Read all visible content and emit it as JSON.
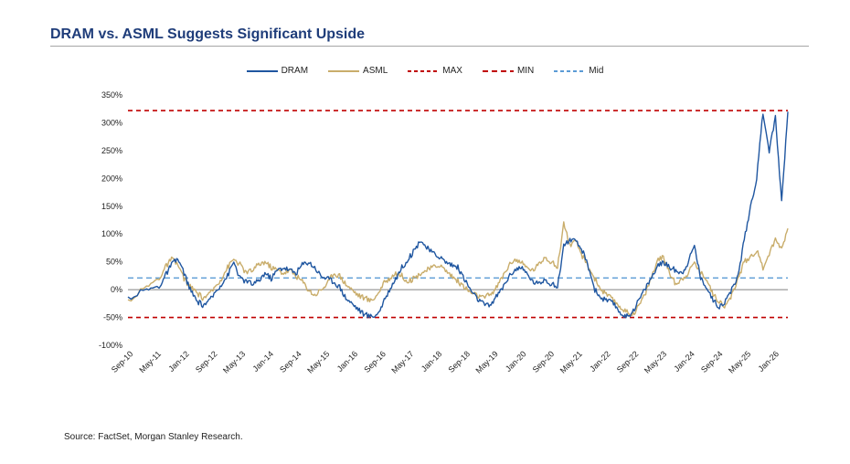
{
  "header": {
    "title": "DRAM vs. ASML Suggests Significant Upside"
  },
  "footer": {
    "source": "Source: FactSet, Morgan Stanley Research."
  },
  "chart_data": {
    "type": "line",
    "title": "DRAM vs. ASML Suggests Significant Upside",
    "xlabel": "",
    "ylabel": "",
    "ylim": [
      -100,
      350
    ],
    "y_ticks": [
      "350%",
      "300%",
      "250%",
      "200%",
      "150%",
      "100%",
      "50%",
      "0%",
      "-50%",
      "-100%"
    ],
    "y_tick_values": [
      350,
      300,
      250,
      200,
      150,
      100,
      50,
      0,
      -50,
      -100
    ],
    "x_ticks": [
      "Sep-10",
      "May-11",
      "Jan-12",
      "Sep-12",
      "May-13",
      "Jan-14",
      "Sep-14",
      "May-15",
      "Jan-16",
      "Sep-16",
      "May-17",
      "Jan-18",
      "Sep-18",
      "May-19",
      "Jan-20",
      "Sep-20",
      "May-21",
      "Jan-22",
      "Sep-22",
      "May-23",
      "Jan-24",
      "Sep-24",
      "May-25",
      "Jan-26"
    ],
    "legend_position": "top-center",
    "series": [
      {
        "name": "DRAM",
        "color": "#1f56a0",
        "style": "solid",
        "points": [
          [
            0,
            -15
          ],
          [
            3,
            0
          ],
          [
            5,
            5
          ],
          [
            6,
            25
          ],
          [
            7,
            45
          ],
          [
            8,
            55
          ],
          [
            9,
            30
          ],
          [
            10,
            0
          ],
          [
            11,
            -20
          ],
          [
            12,
            -28
          ],
          [
            13,
            -22
          ],
          [
            14,
            -5
          ],
          [
            15,
            10
          ],
          [
            16,
            25
          ],
          [
            17,
            50
          ],
          [
            18,
            20
          ],
          [
            19,
            15
          ],
          [
            20,
            10
          ],
          [
            21,
            15
          ],
          [
            22,
            30
          ],
          [
            23,
            20
          ],
          [
            24,
            35
          ],
          [
            25,
            40
          ],
          [
            26,
            35
          ],
          [
            27,
            30
          ],
          [
            28,
            45
          ],
          [
            29,
            50
          ],
          [
            30,
            40
          ],
          [
            31,
            25
          ],
          [
            32,
            20
          ],
          [
            33,
            15
          ],
          [
            34,
            5
          ],
          [
            35,
            -15
          ],
          [
            36,
            -25
          ],
          [
            37,
            -35
          ],
          [
            38,
            -45
          ],
          [
            39,
            -48
          ],
          [
            40,
            -45
          ],
          [
            41,
            -25
          ],
          [
            42,
            0
          ],
          [
            43,
            20
          ],
          [
            44,
            40
          ],
          [
            45,
            55
          ],
          [
            46,
            70
          ],
          [
            47,
            90
          ],
          [
            48,
            75
          ],
          [
            49,
            65
          ],
          [
            50,
            60
          ],
          [
            51,
            50
          ],
          [
            52,
            45
          ],
          [
            53,
            40
          ],
          [
            54,
            20
          ],
          [
            55,
            0
          ],
          [
            56,
            -15
          ],
          [
            57,
            -25
          ],
          [
            58,
            -30
          ],
          [
            59,
            -15
          ],
          [
            60,
            0
          ],
          [
            61,
            20
          ],
          [
            62,
            35
          ],
          [
            63,
            40
          ],
          [
            64,
            30
          ],
          [
            65,
            15
          ],
          [
            66,
            10
          ],
          [
            67,
            20
          ],
          [
            68,
            10
          ],
          [
            69,
            5
          ],
          [
            70,
            80
          ],
          [
            71,
            90
          ],
          [
            72,
            85
          ],
          [
            73,
            70
          ],
          [
            74,
            40
          ],
          [
            75,
            0
          ],
          [
            76,
            -15
          ],
          [
            77,
            -20
          ],
          [
            78,
            -25
          ],
          [
            79,
            -40
          ],
          [
            80,
            -50
          ],
          [
            81,
            -40
          ],
          [
            82,
            -20
          ],
          [
            83,
            0
          ],
          [
            84,
            20
          ],
          [
            85,
            40
          ],
          [
            86,
            50
          ],
          [
            87,
            40
          ],
          [
            88,
            35
          ],
          [
            89,
            30
          ],
          [
            90,
            50
          ],
          [
            91,
            80
          ],
          [
            92,
            20
          ],
          [
            93,
            5
          ],
          [
            94,
            -20
          ],
          [
            95,
            -30
          ],
          [
            96,
            -20
          ],
          [
            97,
            0
          ],
          [
            98,
            25
          ],
          [
            99,
            90
          ],
          [
            100,
            150
          ],
          [
            101,
            200
          ],
          [
            102,
            320
          ],
          [
            103,
            250
          ],
          [
            104,
            310
          ],
          [
            105,
            160
          ],
          [
            106,
            320
          ]
        ]
      },
      {
        "name": "ASML",
        "color": "#c9ad6b",
        "style": "solid",
        "points": [
          [
            0,
            -20
          ],
          [
            3,
            5
          ],
          [
            5,
            20
          ],
          [
            6,
            40
          ],
          [
            7,
            55
          ],
          [
            8,
            45
          ],
          [
            9,
            20
          ],
          [
            10,
            5
          ],
          [
            11,
            -5
          ],
          [
            12,
            -15
          ],
          [
            13,
            -10
          ],
          [
            14,
            5
          ],
          [
            15,
            20
          ],
          [
            16,
            40
          ],
          [
            17,
            55
          ],
          [
            18,
            45
          ],
          [
            19,
            30
          ],
          [
            20,
            35
          ],
          [
            21,
            45
          ],
          [
            22,
            50
          ],
          [
            23,
            40
          ],
          [
            24,
            35
          ],
          [
            25,
            30
          ],
          [
            26,
            35
          ],
          [
            27,
            25
          ],
          [
            28,
            15
          ],
          [
            29,
            0
          ],
          [
            30,
            -10
          ],
          [
            31,
            0
          ],
          [
            32,
            10
          ],
          [
            33,
            30
          ],
          [
            34,
            25
          ],
          [
            35,
            10
          ],
          [
            36,
            0
          ],
          [
            37,
            -10
          ],
          [
            38,
            -15
          ],
          [
            39,
            -20
          ],
          [
            40,
            -10
          ],
          [
            41,
            10
          ],
          [
            42,
            20
          ],
          [
            43,
            30
          ],
          [
            44,
            25
          ],
          [
            45,
            15
          ],
          [
            46,
            20
          ],
          [
            47,
            30
          ],
          [
            48,
            35
          ],
          [
            49,
            40
          ],
          [
            50,
            45
          ],
          [
            51,
            35
          ],
          [
            52,
            25
          ],
          [
            53,
            15
          ],
          [
            54,
            5
          ],
          [
            55,
            -5
          ],
          [
            56,
            -10
          ],
          [
            57,
            -15
          ],
          [
            58,
            -10
          ],
          [
            59,
            0
          ],
          [
            60,
            20
          ],
          [
            61,
            40
          ],
          [
            62,
            55
          ],
          [
            63,
            50
          ],
          [
            64,
            40
          ],
          [
            65,
            35
          ],
          [
            66,
            45
          ],
          [
            67,
            60
          ],
          [
            68,
            50
          ],
          [
            69,
            40
          ],
          [
            70,
            120
          ],
          [
            71,
            80
          ],
          [
            72,
            85
          ],
          [
            73,
            60
          ],
          [
            74,
            40
          ],
          [
            75,
            20
          ],
          [
            76,
            0
          ],
          [
            77,
            -10
          ],
          [
            78,
            -20
          ],
          [
            79,
            -30
          ],
          [
            80,
            -40
          ],
          [
            81,
            -45
          ],
          [
            82,
            -30
          ],
          [
            83,
            -10
          ],
          [
            84,
            20
          ],
          [
            85,
            50
          ],
          [
            86,
            60
          ],
          [
            87,
            30
          ],
          [
            88,
            10
          ],
          [
            89,
            20
          ],
          [
            90,
            30
          ],
          [
            91,
            50
          ],
          [
            92,
            30
          ],
          [
            93,
            20
          ],
          [
            94,
            -10
          ],
          [
            95,
            -20
          ],
          [
            96,
            -30
          ],
          [
            97,
            -10
          ],
          [
            98,
            20
          ],
          [
            99,
            50
          ],
          [
            100,
            60
          ],
          [
            101,
            70
          ],
          [
            102,
            40
          ],
          [
            103,
            65
          ],
          [
            104,
            90
          ],
          [
            105,
            75
          ],
          [
            106,
            110
          ]
        ]
      },
      {
        "name": "MAX",
        "color": "#c00000",
        "style": "dashed",
        "value": 322
      },
      {
        "name": "MIN",
        "color": "#c00000",
        "style": "dashed",
        "value": -50
      },
      {
        "name": "Mid",
        "color": "#5b9bd5",
        "style": "dashed",
        "value": 21
      }
    ]
  }
}
